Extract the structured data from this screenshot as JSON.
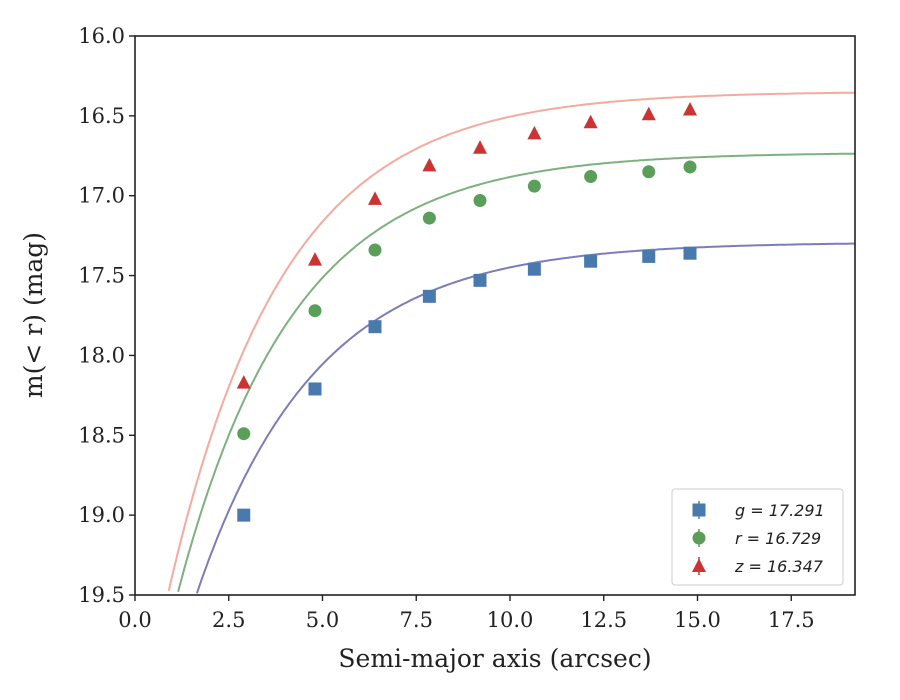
{
  "chart_data": {
    "type": "scatter",
    "xlabel": "Semi-major axis (arcsec)",
    "ylabel": "m(< r) (mag)",
    "xlim": [
      0,
      19.2
    ],
    "ylim": [
      19.5,
      16.0
    ],
    "y_inverted": true,
    "x_ticks": [
      0.0,
      2.5,
      5.0,
      7.5,
      10.0,
      12.5,
      15.0,
      17.5
    ],
    "x_tick_labels": [
      "0.0",
      "2.5",
      "5.0",
      "7.5",
      "10.0",
      "12.5",
      "15.0",
      "17.5"
    ],
    "y_ticks": [
      16.0,
      16.5,
      17.0,
      17.5,
      18.0,
      18.5,
      19.0,
      19.5
    ],
    "y_tick_labels": [
      "16.0",
      "16.5",
      "17.0",
      "17.5",
      "18.0",
      "18.5",
      "19.0",
      "19.5"
    ],
    "grid": false,
    "legend_position": "lower-right",
    "x": [
      2.9,
      4.8,
      6.4,
      7.85,
      9.2,
      10.65,
      12.15,
      13.7,
      14.8
    ],
    "series": [
      {
        "name": "g = 17.291",
        "symbol": "g",
        "value": "17.291",
        "marker": "square",
        "marker_color": "#4a7aad",
        "curve_color": "#7b7dbb",
        "values": [
          19.0,
          18.21,
          17.82,
          17.63,
          17.53,
          17.46,
          17.41,
          17.38,
          17.36
        ],
        "fit": {
          "m_inf": 17.291,
          "A": 3.7,
          "r0": 3.17
        }
      },
      {
        "name": "r = 16.729",
        "symbol": "r",
        "value": "16.729",
        "marker": "circle",
        "marker_color": "#5a9e5a",
        "curve_color": "#7fb07f",
        "values": [
          18.49,
          17.72,
          17.34,
          17.14,
          17.03,
          16.94,
          16.88,
          16.85,
          16.82
        ],
        "fit": {
          "m_inf": 16.729,
          "A": 4.0,
          "r0": 3.07
        }
      },
      {
        "name": "z = 16.347",
        "symbol": "z",
        "value": "16.347",
        "marker": "triangle",
        "marker_color": "#cc3333",
        "curve_color": "#f5aa9e",
        "values": [
          18.17,
          17.4,
          17.02,
          16.81,
          16.7,
          16.61,
          16.54,
          16.49,
          16.46
        ],
        "fit": {
          "m_inf": 16.347,
          "A": 4.2,
          "r0": 3.05
        }
      }
    ]
  }
}
